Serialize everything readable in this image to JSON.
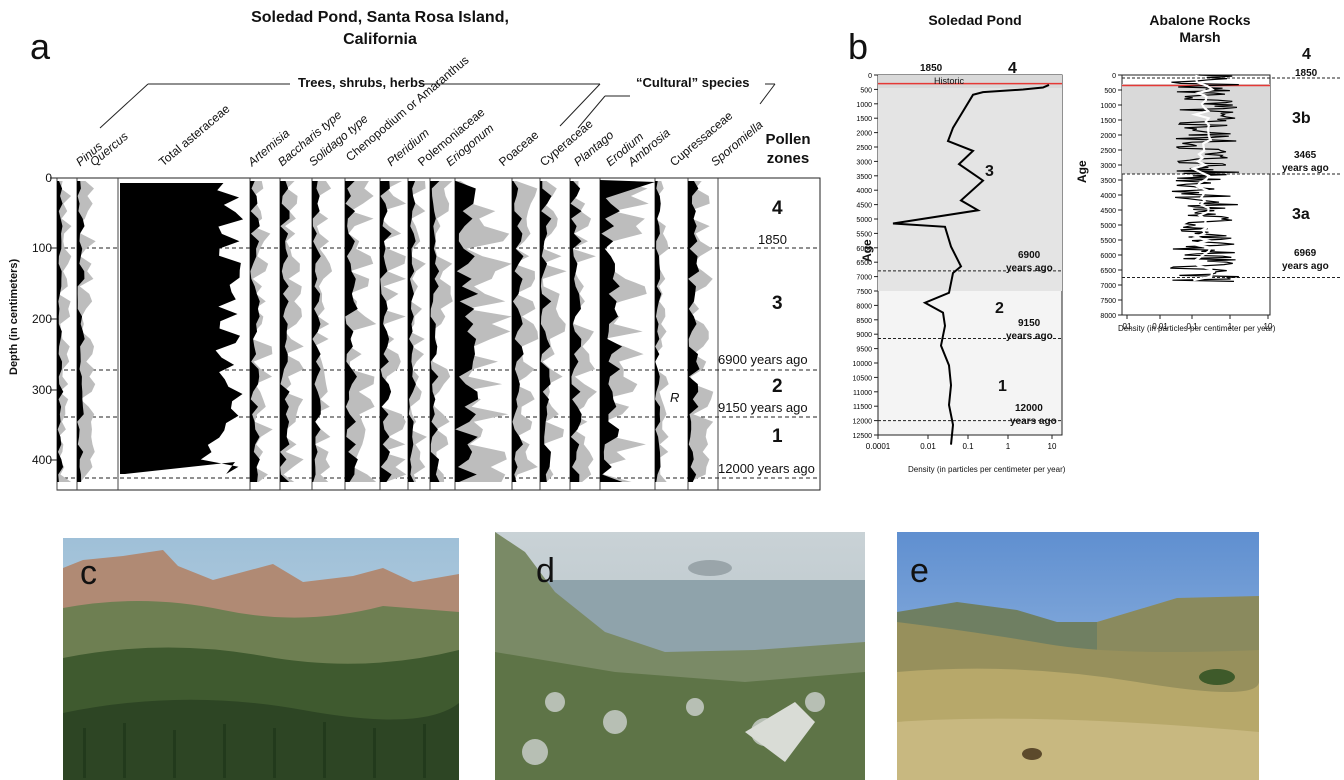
{
  "panel_a": {
    "letter": "a",
    "title_line1": "Soledad Pond, Santa Rosa Island,",
    "title_line2": "California",
    "group_trees": "Trees, shrubs, herbs",
    "group_cultural": "“Cultural” species",
    "taxa": [
      "Pinus",
      "Quercus",
      "Total asteraceae",
      "Artemisia",
      "Baccharis type",
      "Solidago type",
      "Chenopodium or Amaranthus",
      "Pteridium",
      "Polemoniaceae",
      "Eriogonum",
      "Poaceae",
      "Cyperaceae",
      "Plantago",
      "Erodium",
      "Ambrosia",
      "Cupressaceae",
      "Sporomiella"
    ],
    "zones_header": "Pollen zones",
    "ylabel": "Depth (in centimeters)",
    "yticks": [
      "0",
      "100",
      "200",
      "300",
      "400"
    ],
    "zone_labels": [
      "4",
      "1850",
      "3",
      "6900 years ago",
      "2",
      "9150 years ago",
      "1",
      "12000 years ago"
    ],
    "r_mark": "R"
  },
  "panel_b": {
    "letter": "b",
    "left_title": "Soledad Pond",
    "right_title_line1": "Abalone Rocks",
    "right_title_line2": "Marsh",
    "ylabel": "Age",
    "xlabel": "Density (in particles per centimeter per year)",
    "left_yticks": [
      "0",
      "500",
      "1000",
      "1500",
      "2000",
      "2500",
      "3000",
      "3500",
      "4000",
      "4500",
      "5000",
      "5500",
      "6000",
      "6500",
      "7000",
      "7500",
      "8000",
      "8500",
      "9000",
      "9500",
      "10000",
      "10500",
      "11000",
      "11500",
      "12000",
      "12500"
    ],
    "left_xticks": [
      "0.0001",
      "0.01",
      "0.1",
      "1",
      "10"
    ],
    "right_yticks": [
      "0",
      "500",
      "1000",
      "1500",
      "2000",
      "2500",
      "3000",
      "3500",
      "4000",
      "4500",
      "5000",
      "5500",
      "6000",
      "6500",
      "7000",
      "7500",
      "8000"
    ],
    "right_xticks": [
      "01",
      "0.01",
      "0.1",
      "1",
      "10"
    ],
    "left_labels": {
      "top_year": "1850",
      "historic": "Historic",
      "z4": "4",
      "z3": "3",
      "age6900": "6900",
      "years_ago_1": "years ago",
      "z2": "2",
      "age9150": "9150",
      "years_ago_2": "years ago",
      "z1": "1",
      "age12000": "12000",
      "years_ago_3": "years ago"
    },
    "right_labels": {
      "z4": "4",
      "y1850": "1850",
      "z3b": "3b",
      "age3465": "3465",
      "years_ago_1": "years ago",
      "z3a": "3a",
      "age6969": "6969",
      "years_ago_2": "years ago"
    }
  },
  "photos": [
    {
      "letter": "c"
    },
    {
      "letter": "d"
    },
    {
      "letter": "e"
    }
  ],
  "colors": {
    "black": "#000000",
    "gray": "#bdbdbd",
    "red": "#e53935",
    "shade": "#e6e6e6"
  }
}
